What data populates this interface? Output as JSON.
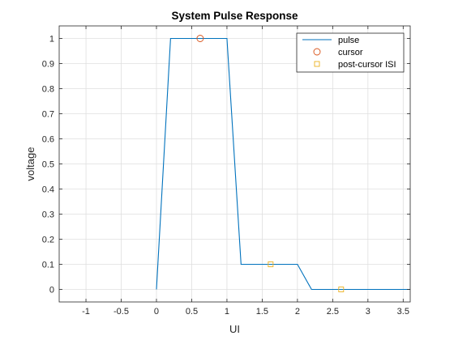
{
  "chart_data": {
    "type": "line",
    "title": "System Pulse Response",
    "xlabel": "UI",
    "ylabel": "voltage",
    "xlim": [
      -1.38,
      3.6
    ],
    "ylim": [
      -0.05,
      1.05
    ],
    "xticks": [
      -1,
      -0.5,
      0,
      0.5,
      1,
      1.5,
      2,
      2.5,
      3,
      3.5
    ],
    "xtick_labels": [
      "-1",
      "-0.5",
      "0",
      "0.5",
      "1",
      "1.5",
      "2",
      "2.5",
      "3",
      "3.5"
    ],
    "yticks": [
      0,
      0.1,
      0.2,
      0.3,
      0.4,
      0.5,
      0.6,
      0.7,
      0.8,
      0.9,
      1
    ],
    "ytick_labels": [
      "0",
      "0.1",
      "0.2",
      "0.3",
      "0.4",
      "0.5",
      "0.6",
      "0.7",
      "0.8",
      "0.9",
      "1"
    ],
    "grid": true,
    "legend_position": "top-right",
    "series": [
      {
        "name": "pulse",
        "style": "line",
        "color": "#0072BD",
        "x": [
          0,
          0.2,
          1,
          1.2,
          2,
          2.2,
          3.6
        ],
        "y": [
          0,
          1,
          1,
          0.1,
          0.1,
          0,
          0
        ]
      },
      {
        "name": "cursor",
        "style": "marker-circle",
        "color": "#D95319",
        "x": [
          0.62
        ],
        "y": [
          1
        ]
      },
      {
        "name": "post-cursor ISI",
        "style": "marker-square",
        "color": "#EDB120",
        "x": [
          1.62,
          2.62
        ],
        "y": [
          0.1,
          0
        ]
      }
    ]
  }
}
